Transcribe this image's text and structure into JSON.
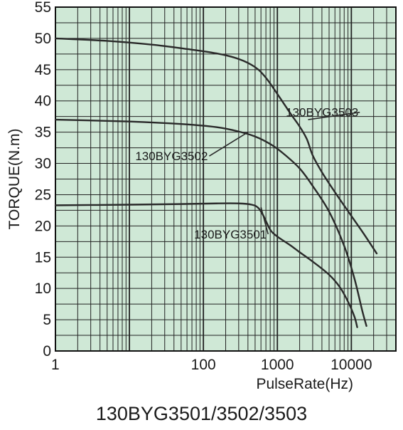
{
  "chart_data": {
    "type": "line",
    "title": "130BYG3501/3502/3503",
    "xlabel": "PulseRate(Hz)",
    "ylabel": "TORQUE(N.m)",
    "xscale": "log",
    "xlim": [
      1,
      40000
    ],
    "ylim": [
      0,
      55
    ],
    "grid": true,
    "background_color": "#cfe8d6",
    "line_color": "#2a2a2a",
    "x_ticks": [
      {
        "value": 1,
        "label": "1"
      },
      {
        "value": 100,
        "label": "100"
      },
      {
        "value": 1000,
        "label": "1000"
      },
      {
        "value": 10000,
        "label": "10000"
      }
    ],
    "y_ticks": [
      {
        "value": 0,
        "label": "0"
      },
      {
        "value": 5,
        "label": "5"
      },
      {
        "value": 10,
        "label": "10"
      },
      {
        "value": 15,
        "label": "15"
      },
      {
        "value": 20,
        "label": "20"
      },
      {
        "value": 25,
        "label": "25"
      },
      {
        "value": 30,
        "label": "30"
      },
      {
        "value": 35,
        "label": "35"
      },
      {
        "value": 40,
        "label": "40"
      },
      {
        "value": 45,
        "label": "45"
      },
      {
        "value": 50,
        "label": "50"
      },
      {
        "value": 55,
        "label": "55"
      }
    ],
    "series": [
      {
        "name": "130BYG3503",
        "label_anchor": {
          "x": 1300,
          "y": 37.5
        },
        "label_pointer": {
          "x": 2600,
          "y": 37.0
        },
        "x": [
          1,
          5,
          20,
          60,
          150,
          300,
          500,
          700,
          1000,
          1500,
          2000,
          2500,
          3000,
          4000,
          6000,
          10000,
          15000,
          22000
        ],
        "y": [
          50,
          49.6,
          49,
          48.3,
          47.6,
          46.7,
          45.4,
          43.7,
          41.1,
          38,
          35.9,
          33.9,
          31.3,
          28.6,
          25.4,
          21.6,
          18.6,
          15.6
        ]
      },
      {
        "name": "130BYG3502",
        "label_anchor": {
          "x": 12,
          "y": 30.5
        },
        "label_pointer": {
          "x": 400,
          "y": 35.0
        },
        "x": [
          1,
          10,
          50,
          150,
          300,
          500,
          800,
          1200,
          2000,
          3000,
          5000,
          8000,
          11000,
          14000,
          16000
        ],
        "y": [
          37,
          36.7,
          36.3,
          35.8,
          35.1,
          34.3,
          33.1,
          31.6,
          29.2,
          26.4,
          22.3,
          16.8,
          11.6,
          6.5,
          4.0
        ]
      },
      {
        "name": "130BYG3501",
        "label_anchor": {
          "x": 75,
          "y": 18.0
        },
        "label_pointer": {
          "x": 600,
          "y": 23.0
        },
        "x": [
          1,
          10,
          50,
          150,
          300,
          450,
          550,
          650,
          800,
          1000,
          1500,
          2000,
          3000,
          5000,
          7000,
          9000,
          11000,
          12000
        ],
        "y": [
          23.3,
          23.4,
          23.5,
          23.6,
          23.6,
          23.4,
          22.9,
          21.6,
          19.4,
          18.3,
          16.9,
          15.8,
          14.3,
          12.2,
          10.2,
          7.9,
          5.5,
          3.8
        ]
      }
    ]
  }
}
